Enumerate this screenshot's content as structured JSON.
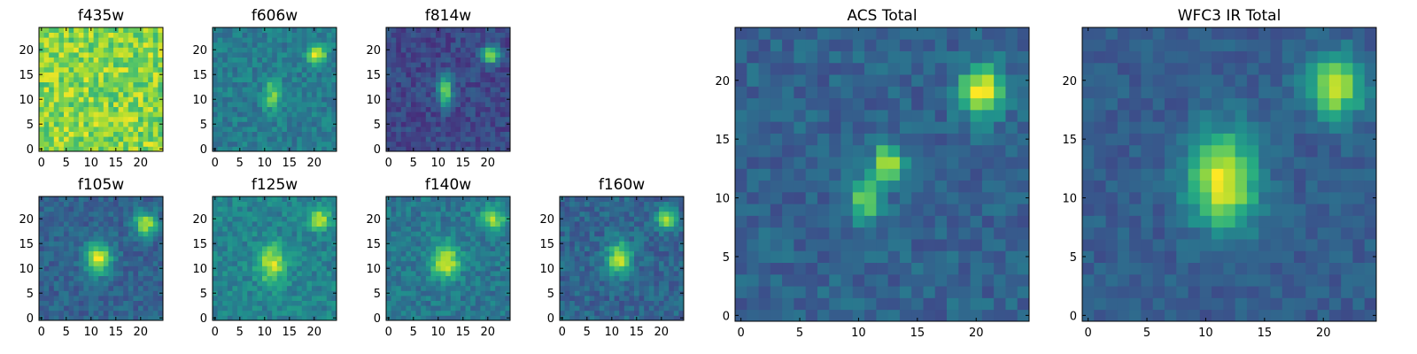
{
  "figure": {
    "colormap": "viridis",
    "axes_color": "#000000",
    "background": "#ffffff"
  },
  "chart_data": [
    {
      "type": "heatmap",
      "title": "f435w",
      "size": 25,
      "xticks": [
        "0",
        "5",
        "10",
        "15",
        "20"
      ],
      "yticks": [
        "0",
        "5",
        "10",
        "15",
        "20"
      ],
      "xlim": [
        0,
        25
      ],
      "ylim": [
        0,
        25
      ],
      "sources": [],
      "background_level": 0.82,
      "noise": 0.16
    },
    {
      "type": "heatmap",
      "title": "f606w",
      "size": 25,
      "xticks": [
        "0",
        "5",
        "10",
        "15",
        "20"
      ],
      "yticks": [
        "0",
        "5",
        "10",
        "15",
        "20"
      ],
      "xlim": [
        0,
        25
      ],
      "ylim": [
        0,
        25
      ],
      "sources": [
        {
          "x": 20.5,
          "y": 19,
          "amp": 0.55,
          "sx": 1.3,
          "sy": 1.3
        },
        {
          "x": 11.5,
          "y": 11,
          "amp": 0.35,
          "sx": 1.2,
          "sy": 2.2
        }
      ],
      "background_level": 0.42,
      "noise": 0.1
    },
    {
      "type": "heatmap",
      "title": "f814w",
      "size": 25,
      "xticks": [
        "0",
        "5",
        "10",
        "15",
        "20"
      ],
      "yticks": [
        "0",
        "5",
        "10",
        "15",
        "20"
      ],
      "xlim": [
        0,
        25
      ],
      "ylim": [
        0,
        25
      ],
      "sources": [
        {
          "x": 20.5,
          "y": 19,
          "amp": 0.7,
          "sx": 1.2,
          "sy": 1.2
        },
        {
          "x": 11.5,
          "y": 11.5,
          "amp": 0.6,
          "sx": 1.0,
          "sy": 2.2
        }
      ],
      "background_level": 0.22,
      "noise": 0.09
    },
    {
      "type": "heatmap",
      "title": "f105w",
      "size": 25,
      "xticks": [
        "0",
        "5",
        "10",
        "15",
        "20"
      ],
      "yticks": [
        "0",
        "5",
        "10",
        "15",
        "20"
      ],
      "xlim": [
        0,
        25
      ],
      "ylim": [
        0,
        25
      ],
      "sources": [
        {
          "x": 21,
          "y": 19,
          "amp": 0.6,
          "sx": 1.6,
          "sy": 1.6
        },
        {
          "x": 11.5,
          "y": 12,
          "amp": 0.65,
          "sx": 1.8,
          "sy": 2.2
        }
      ],
      "background_level": 0.32,
      "noise": 0.09
    },
    {
      "type": "heatmap",
      "title": "f125w",
      "size": 25,
      "xticks": [
        "0",
        "5",
        "10",
        "15",
        "20"
      ],
      "yticks": [
        "0",
        "5",
        "10",
        "15",
        "20"
      ],
      "xlim": [
        0,
        25
      ],
      "ylim": [
        0,
        25
      ],
      "sources": [
        {
          "x": 21,
          "y": 20,
          "amp": 0.45,
          "sx": 1.5,
          "sy": 1.5
        },
        {
          "x": 11.5,
          "y": 11,
          "amp": 0.5,
          "sx": 2.0,
          "sy": 2.6
        }
      ],
      "background_level": 0.45,
      "noise": 0.1
    },
    {
      "type": "heatmap",
      "title": "f140w",
      "size": 25,
      "xticks": [
        "0",
        "5",
        "10",
        "15",
        "20"
      ],
      "yticks": [
        "0",
        "5",
        "10",
        "15",
        "20"
      ],
      "xlim": [
        0,
        25
      ],
      "ylim": [
        0,
        25
      ],
      "sources": [
        {
          "x": 21,
          "y": 20,
          "amp": 0.45,
          "sx": 1.7,
          "sy": 1.7
        },
        {
          "x": 11.5,
          "y": 11.5,
          "amp": 0.55,
          "sx": 2.0,
          "sy": 2.5
        }
      ],
      "background_level": 0.4,
      "noise": 0.1
    },
    {
      "type": "heatmap",
      "title": "f160w",
      "size": 25,
      "xticks": [
        "0",
        "5",
        "10",
        "15",
        "20"
      ],
      "yticks": [
        "0",
        "5",
        "10",
        "15",
        "20"
      ],
      "xlim": [
        0,
        25
      ],
      "ylim": [
        0,
        25
      ],
      "sources": [
        {
          "x": 21,
          "y": 20,
          "amp": 0.6,
          "sx": 1.4,
          "sy": 1.4
        },
        {
          "x": 11.5,
          "y": 12,
          "amp": 0.6,
          "sx": 1.7,
          "sy": 2.3
        }
      ],
      "background_level": 0.33,
      "noise": 0.1
    },
    {
      "type": "heatmap",
      "title": "ACS Total",
      "size": 25,
      "xticks": [
        "0",
        "5",
        "10",
        "15",
        "20"
      ],
      "yticks": [
        "0",
        "5",
        "10",
        "15",
        "20"
      ],
      "xlim": [
        0,
        25
      ],
      "ylim": [
        0,
        25
      ],
      "sources": [
        {
          "x": 20.5,
          "y": 19,
          "amp": 0.7,
          "sx": 1.3,
          "sy": 1.5
        },
        {
          "x": 12.5,
          "y": 13,
          "amp": 0.55,
          "sx": 0.9,
          "sy": 1.2
        },
        {
          "x": 10.5,
          "y": 10,
          "amp": 0.55,
          "sx": 0.9,
          "sy": 1.2
        }
      ],
      "background_level": 0.32,
      "noise": 0.09
    },
    {
      "type": "heatmap",
      "title": "WFC3 IR Total",
      "size": 25,
      "xticks": [
        "0",
        "5",
        "10",
        "15",
        "20"
      ],
      "yticks": [
        "0",
        "5",
        "10",
        "15",
        "20"
      ],
      "xlim": [
        0,
        25
      ],
      "ylim": [
        0,
        25
      ],
      "sources": [
        {
          "x": 21,
          "y": 19.5,
          "amp": 0.65,
          "sx": 1.6,
          "sy": 1.8
        },
        {
          "x": 11.5,
          "y": 11.5,
          "amp": 0.7,
          "sx": 2.0,
          "sy": 2.8
        }
      ],
      "background_level": 0.3,
      "noise": 0.07
    }
  ]
}
